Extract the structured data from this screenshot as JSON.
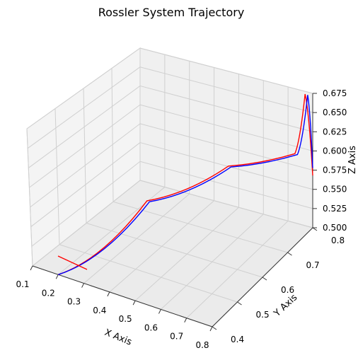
{
  "chart_data": {
    "type": "line",
    "projection": "3d",
    "title": "Rossler System Trajectory",
    "xlabel": "X Axis",
    "ylabel": "Y Axis",
    "zlabel": "Z Axis",
    "xlim": [
      0.1,
      0.8
    ],
    "ylim": [
      0.4,
      0.8
    ],
    "zlim": [
      0.5,
      0.68
    ],
    "x_ticks": [
      "0.1",
      "0.2",
      "0.3",
      "0.4",
      "0.5",
      "0.6",
      "0.7",
      "0.8"
    ],
    "y_ticks": [
      "0.4",
      "0.5",
      "0.6",
      "0.7",
      "0.8"
    ],
    "z_ticks": [
      "0.500",
      "0.525",
      "0.550",
      "0.575",
      "0.600",
      "0.625",
      "0.650",
      "0.675"
    ],
    "grid": true,
    "series": [
      {
        "color": "#ff0000",
        "points": [
          [
            0.2,
            0.4,
            0.5
          ],
          [
            0.35,
            0.6,
            0.55
          ],
          [
            0.55,
            0.72,
            0.58
          ],
          [
            0.75,
            0.78,
            0.6
          ],
          [
            0.78,
            0.79,
            0.68
          ],
          [
            0.8,
            0.8,
            0.57
          ]
        ]
      },
      {
        "color": "#0000ff",
        "points": [
          [
            0.2,
            0.4,
            0.5
          ],
          [
            0.36,
            0.6,
            0.55
          ],
          [
            0.56,
            0.72,
            0.58
          ],
          [
            0.76,
            0.78,
            0.6
          ],
          [
            0.79,
            0.79,
            0.68
          ],
          [
            0.8,
            0.8,
            0.58
          ]
        ]
      }
    ]
  }
}
